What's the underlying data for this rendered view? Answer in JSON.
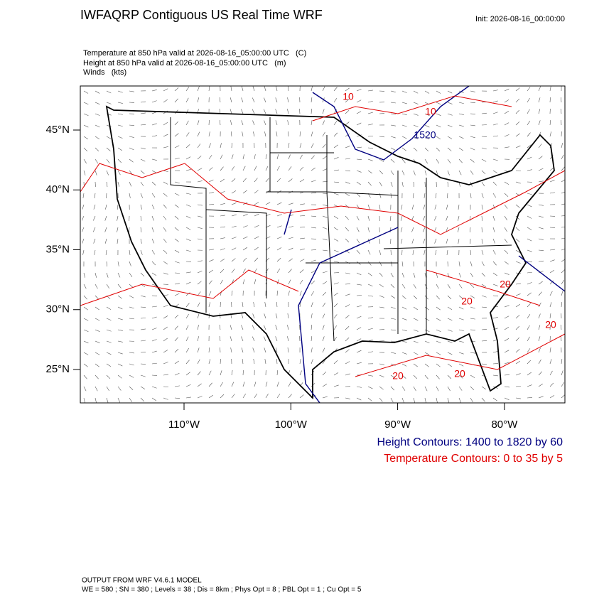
{
  "header": {
    "title": "IWFAQRP Contiguous US Real Time WRF",
    "init": "Init: 2026-08-16_00:00:00",
    "fields": [
      "Temperature at 850 hPa valid at 2026-08-16_05:00:00 UTC   (C)",
      "Height at 850 hPa valid at 2026-08-16_05:00:00 UTC   (m)",
      "Winds   (kts)"
    ]
  },
  "map": {
    "lat_ticks": [
      {
        "value": 45,
        "label": "45°N"
      },
      {
        "value": 40,
        "label": "40°N"
      },
      {
        "value": 35,
        "label": "35°N"
      },
      {
        "value": 30,
        "label": "30°N"
      },
      {
        "value": 25,
        "label": "25°N"
      }
    ],
    "lon_ticks": [
      {
        "value": -110,
        "label": "110°W"
      },
      {
        "value": -100,
        "label": "100°W"
      },
      {
        "value": -90,
        "label": "90°W"
      },
      {
        "value": -80,
        "label": "80°W"
      }
    ],
    "contour_labels": [
      {
        "text": "10",
        "color": "#e00000"
      },
      {
        "text": "10",
        "color": "#e00000"
      },
      {
        "text": "1520",
        "color": "#000080"
      },
      {
        "text": "20",
        "color": "#e00000"
      },
      {
        "text": "20",
        "color": "#e00000"
      },
      {
        "text": "20",
        "color": "#e00000"
      },
      {
        "text": "20",
        "color": "#e00000"
      },
      {
        "text": "20",
        "color": "#e00000"
      }
    ],
    "legend": [
      {
        "text": "Height Contours: 1400 to 1820 by 60",
        "color": "#000080"
      },
      {
        "text": "Temperature Contours: 0 to 35 by 5",
        "color": "#e00000"
      }
    ]
  },
  "footer": [
    "OUTPUT FROM WRF V4.6.1 MODEL",
    "WE = 580 ; SN = 380 ; Levels = 38 ; Dis = 8km ; Phys Opt = 8 ; PBL Opt = 1 ; Cu Opt = 5"
  ]
}
